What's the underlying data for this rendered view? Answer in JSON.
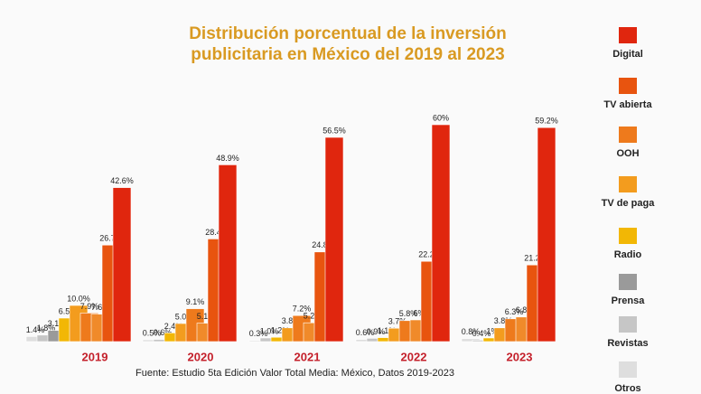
{
  "chart_data": {
    "type": "bar",
    "title": [
      "Distribución porcentual de la inversión",
      "publicitaria en México del 2019 al 2023"
    ],
    "legend": [
      {
        "name": "Digital",
        "color": "#e0260e"
      },
      {
        "name": "TV abierta",
        "color": "#e8540f"
      },
      {
        "name": "OOH",
        "color": "#ee7a1c"
      },
      {
        "name": "TV de paga",
        "color": "#f39c1e"
      },
      {
        "name": "Radio",
        "color": "#f2b705"
      },
      {
        "name": "Prensa",
        "color": "#9a9a9a"
      },
      {
        "name": "Revistas",
        "color": "#c6c6c6"
      },
      {
        "name": "Otros",
        "color": "#dedede"
      }
    ],
    "ylim": [
      0,
      60
    ],
    "groups": [
      {
        "label": "2019",
        "values": [
          1.4,
          1.8,
          3.1,
          6.5,
          10.0,
          7.9,
          7.6,
          26.7,
          42.6
        ],
        "value_labels": [
          "1.4%",
          "1.8%",
          "3.1%",
          "6.5%",
          "10.0%",
          "7.9%",
          "7.6%",
          "26.7%",
          "42.6%"
        ],
        "colors": [
          "#dedede",
          "#c6c6c6",
          "#9a9a9a",
          "#f2b705",
          "#f39c1e",
          "#ee7a1c",
          "#f08a2a",
          "#e8540f",
          "#e0260e"
        ]
      },
      {
        "label": "2020",
        "values": [
          0.5,
          0.6,
          2.4,
          5.0,
          9.1,
          5.1,
          28.4,
          48.9
        ],
        "value_labels": [
          "0.5%",
          "0.6%",
          "2.4%",
          "5.0%",
          "9.1%",
          "5.1%",
          "28.4%",
          "48.9%"
        ],
        "colors": [
          "#dedede",
          "#c6c6c6",
          "#f2b705",
          "#f39c1e",
          "#ee7a1c",
          "#f08a2a",
          "#e8540f",
          "#e0260e"
        ]
      },
      {
        "label": "2021",
        "values": [
          0.3,
          1.0,
          1.2,
          3.8,
          7.2,
          5.2,
          24.8,
          56.5
        ],
        "value_labels": [
          "0.3%",
          "1.0%",
          "1.2%",
          "3.8%",
          "7.2%",
          "5.2%",
          "24.8%",
          "56.5%"
        ],
        "colors": [
          "#dedede",
          "#c6c6c6",
          "#f2b705",
          "#f39c1e",
          "#ee7a1c",
          "#f08a2a",
          "#e8540f",
          "#e0260e"
        ]
      },
      {
        "label": "2022",
        "values": [
          0.6,
          0.9,
          1.1,
          3.7,
          5.8,
          6,
          22.2,
          60
        ],
        "value_labels": [
          "0.6%",
          "0.9%",
          "1.1%",
          "3.7%",
          "5.8%",
          "6%",
          "22.2%",
          "60%"
        ],
        "colors": [
          "#dedede",
          "#c6c6c6",
          "#f2b705",
          "#f39c1e",
          "#ee7a1c",
          "#f08a2a",
          "#e8540f",
          "#e0260e"
        ]
      },
      {
        "label": "2023",
        "values": [
          0.8,
          0.4,
          1,
          3.8,
          6.3,
          6.8,
          21.2,
          59.2
        ],
        "value_labels": [
          "0.8%",
          "0.4%",
          "1%",
          "3.8%",
          "6.3%",
          "6.8%",
          "21.2%",
          "59.2%"
        ],
        "colors": [
          "#dedede",
          "#c6c6c6",
          "#f2b705",
          "#f39c1e",
          "#ee7a1c",
          "#f08a2a",
          "#e8540f",
          "#e0260e"
        ]
      }
    ],
    "source": "Fuente: Estudio 5ta Edición Valor Total Media: México, Datos 2019-2023"
  }
}
